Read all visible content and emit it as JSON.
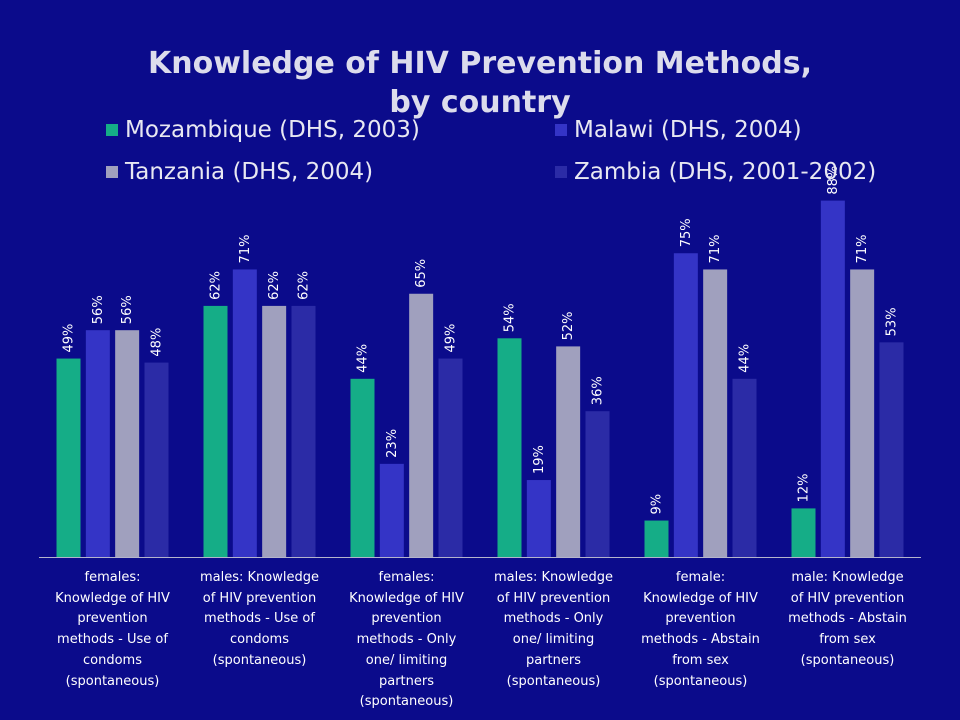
{
  "colors": {
    "background": "#0b0b8b",
    "title": "#dcdcec",
    "legend_text": "#e8e8f2",
    "label_text": "#ffffff",
    "axis": "#b4b4cc"
  },
  "chart_data": {
    "type": "bar",
    "title": "Knowledge of HIV Prevention Methods, by country",
    "categories": [
      "females: Knowledge of HIV prevention methods - Use of condoms (spontaneous)",
      "males: Knowledge of HIV prevention methods - Use of condoms (spontaneous)",
      "females: Knowledge of HIV prevention methods - Only one/ limiting partners (spontaneous)",
      "males: Knowledge of HIV prevention methods - Only one/ limiting partners (spontaneous)",
      "female: Knowledge of HIV prevention methods - Abstain from sex (spontaneous)",
      "male: Knowledge of HIV prevention methods - Abstain from sex (spontaneous)"
    ],
    "series": [
      {
        "name": "Mozambique (DHS, 2003)",
        "color": "#15ad87",
        "values": [
          49,
          62,
          44,
          54,
          9,
          12
        ]
      },
      {
        "name": "Malawi (DHS, 2004)",
        "color": "#3434c6",
        "values": [
          56,
          71,
          23,
          19,
          75,
          88
        ]
      },
      {
        "name": "Tanzania (DHS, 2004)",
        "color": "#a0a0be",
        "values": [
          56,
          62,
          65,
          52,
          71,
          71
        ]
      },
      {
        "name": "Zambia (DHS, 2001-2002)",
        "color": "#2b2ba6",
        "values": [
          48,
          62,
          49,
          36,
          44,
          53
        ]
      }
    ],
    "value_suffix": "%",
    "ylim": [
      0,
      100
    ],
    "grid": false,
    "legend_position": "top"
  }
}
